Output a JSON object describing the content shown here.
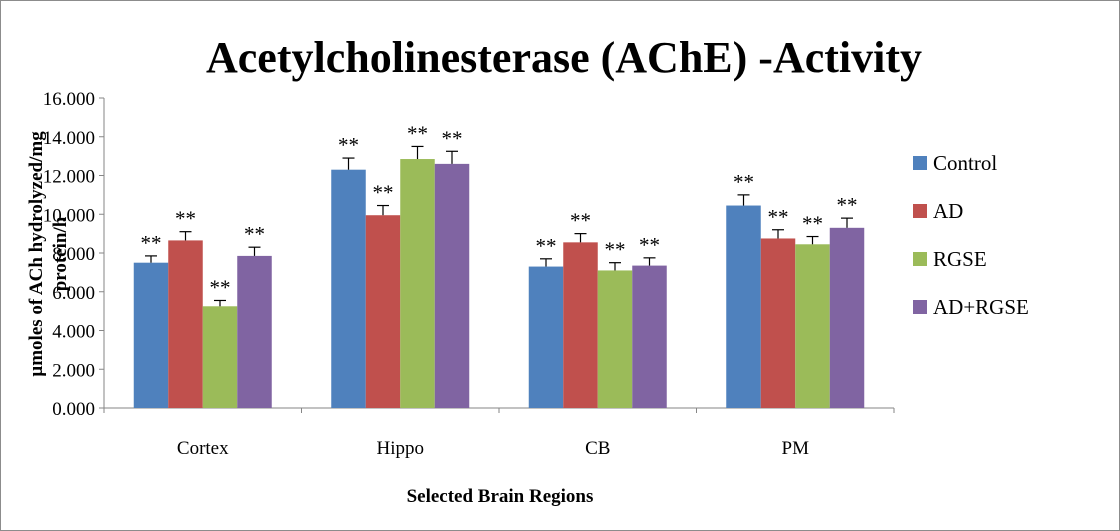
{
  "chart_data": {
    "type": "bar",
    "title": "Acetylcholinesterase (AChE) -Activity",
    "xlabel": "Selected Brain Regions",
    "ylabel": [
      "µmoles of ACh hydrolyzed/mg",
      "protein/h"
    ],
    "ylim": [
      0,
      16
    ],
    "yticks": [
      "0.000",
      "2.000",
      "4.000",
      "6.000",
      "8.000",
      "10.000",
      "12.000",
      "14.000",
      "16.000"
    ],
    "categories": [
      "Cortex",
      "Hippo",
      "CB",
      "PM"
    ],
    "series": [
      {
        "name": "Control",
        "color": "#4F81BD",
        "values": [
          7.5,
          12.3,
          7.3,
          10.45
        ],
        "errors": [
          0.35,
          0.6,
          0.4,
          0.55
        ],
        "labels": [
          "**",
          "**",
          "**",
          "**"
        ]
      },
      {
        "name": "AD",
        "color": "#C0504D",
        "values": [
          8.65,
          9.95,
          8.55,
          8.75
        ],
        "errors": [
          0.45,
          0.5,
          0.45,
          0.45
        ],
        "labels": [
          "**",
          "**",
          "**",
          "**"
        ]
      },
      {
        "name": "RGSE",
        "color": "#9BBB59",
        "values": [
          5.25,
          12.85,
          7.1,
          8.45
        ],
        "errors": [
          0.3,
          0.65,
          0.4,
          0.4
        ],
        "labels": [
          "**",
          "**",
          "**",
          "**"
        ]
      },
      {
        "name": "AD+RGSE",
        "color": "#8064A2",
        "values": [
          7.85,
          12.6,
          7.35,
          9.3
        ],
        "errors": [
          0.45,
          0.65,
          0.4,
          0.5
        ],
        "labels": [
          "**",
          "**",
          "**",
          "**"
        ]
      }
    ],
    "legend": "right",
    "grid": false
  }
}
